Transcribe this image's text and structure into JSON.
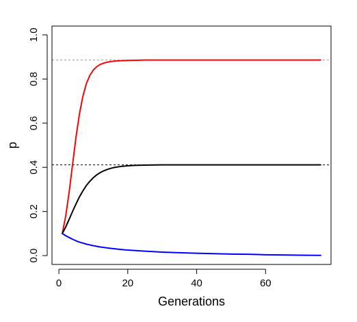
{
  "chart_data": {
    "type": "line",
    "title": "",
    "xlabel": "Generations",
    "ylabel": "p",
    "xlim": [
      -2.0,
      79.0
    ],
    "ylim": [
      -0.04,
      1.04
    ],
    "x_ticks": [
      0,
      20,
      40,
      60
    ],
    "x_tick_labels": [
      "0",
      "20",
      "40",
      "60"
    ],
    "y_ticks": [
      0.0,
      0.2,
      0.4,
      0.6,
      0.8,
      1.0
    ],
    "y_tick_labels": [
      "0.0",
      "0.2",
      "0.4",
      "0.6",
      "0.8",
      "1.0"
    ],
    "grid": false,
    "series": [
      {
        "color": "#ff0000",
        "x": [
          1,
          2,
          3,
          4,
          5,
          6,
          7,
          8,
          9,
          10,
          11,
          12,
          13,
          14,
          15,
          16,
          18,
          20,
          22,
          25,
          30,
          35,
          40,
          50,
          60,
          76
        ],
        "values": [
          0.1,
          0.181,
          0.29,
          0.416,
          0.54,
          0.645,
          0.724,
          0.78,
          0.817,
          0.841,
          0.856,
          0.866,
          0.872,
          0.876,
          0.879,
          0.881,
          0.883,
          0.884,
          0.885,
          0.886,
          0.886,
          0.886,
          0.886,
          0.886,
          0.886,
          0.886
        ]
      },
      {
        "color": "#000000",
        "x": [
          1,
          2,
          3,
          4,
          5,
          6,
          7,
          8,
          9,
          10,
          11,
          12,
          13,
          14,
          15,
          16,
          18,
          20,
          22,
          25,
          30,
          35,
          40,
          50,
          60,
          76
        ],
        "values": [
          0.1,
          0.13,
          0.165,
          0.201,
          0.235,
          0.267,
          0.294,
          0.318,
          0.337,
          0.353,
          0.366,
          0.376,
          0.384,
          0.39,
          0.395,
          0.399,
          0.404,
          0.407,
          0.409,
          0.41,
          0.411,
          0.411,
          0.411,
          0.411,
          0.411,
          0.411
        ]
      },
      {
        "color": "#0000ff",
        "x": [
          1,
          2,
          3,
          4,
          5,
          6,
          8,
          10,
          12,
          15,
          18,
          20,
          25,
          30,
          35,
          40,
          45,
          50,
          55,
          60,
          65,
          70,
          76
        ],
        "values": [
          0.1,
          0.09,
          0.082,
          0.074,
          0.067,
          0.061,
          0.052,
          0.045,
          0.039,
          0.033,
          0.028,
          0.025,
          0.02,
          0.016,
          0.013,
          0.011,
          0.009,
          0.007,
          0.006,
          0.004,
          0.003,
          0.002,
          0.001
        ]
      }
    ],
    "reference_lines": [
      {
        "y": 0.886,
        "color": "#ff6666",
        "style": "dashed"
      },
      {
        "y": 0.411,
        "color": "#000000",
        "style": "dashed"
      }
    ]
  }
}
